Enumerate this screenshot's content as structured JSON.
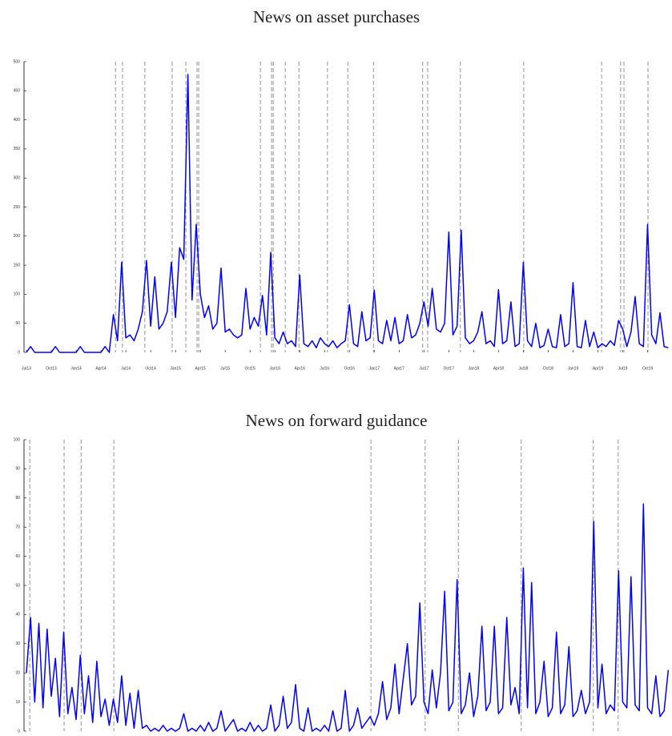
{
  "chart_data": [
    {
      "type": "line",
      "title": "News on asset purchases",
      "categories": [
        "Jul13",
        null,
        null,
        null,
        null,
        null,
        "Oct13",
        null,
        null,
        null,
        null,
        null,
        "Jan14",
        null,
        null,
        null,
        null,
        null,
        "Apr14",
        null,
        null,
        null,
        null,
        null,
        "Jul14",
        null,
        null,
        null,
        null,
        null,
        "Oct14",
        null,
        null,
        null,
        null,
        null,
        "Jan15",
        null,
        null,
        null,
        null,
        null,
        "Apr15",
        null,
        null,
        null,
        null,
        null,
        "Jul15",
        null,
        null,
        null,
        null,
        null,
        "Oct15",
        null,
        null,
        null,
        null,
        null,
        "Jan16",
        null,
        null,
        null,
        null,
        null,
        "Apr16",
        null,
        null,
        null,
        null,
        null,
        "Jul16",
        null,
        null,
        null,
        null,
        null,
        "Oct16",
        null,
        null,
        null,
        null,
        null,
        "Jan17",
        null,
        null,
        null,
        null,
        null,
        "Apr17",
        null,
        null,
        null,
        null,
        null,
        "Jul17",
        null,
        null,
        null,
        null,
        null,
        "Oct17",
        null,
        null,
        null,
        null,
        null,
        "Jan18",
        null,
        null,
        null,
        null,
        null,
        "Apr18",
        null,
        null,
        null,
        null,
        null,
        "Jul18",
        null,
        null,
        null,
        null,
        null,
        "Oct18",
        null,
        null,
        null,
        null,
        null,
        "Jan19",
        null,
        null,
        null,
        null,
        null,
        "Apr19",
        null,
        null,
        null,
        null,
        null,
        "Jul19",
        null,
        null,
        null,
        null,
        null,
        "Oct19",
        null,
        null,
        null,
        null,
        null
      ],
      "series": [
        {
          "color": "#0000ff",
          "values": [
            0,
            10,
            0,
            0,
            0,
            0,
            0,
            10,
            0,
            0,
            0,
            0,
            0,
            10,
            0,
            0,
            0,
            0,
            0,
            10,
            0,
            65,
            20,
            155,
            25,
            30,
            20,
            40,
            70,
            158,
            45,
            130,
            40,
            50,
            70,
            155,
            60,
            180,
            160,
            478,
            90,
            220,
            100,
            60,
            80,
            40,
            50,
            145,
            35,
            40,
            30,
            25,
            30,
            110,
            40,
            60,
            45,
            98,
            30,
            172,
            25,
            15,
            35,
            15,
            20,
            10,
            133,
            15,
            10,
            20,
            8,
            25,
            15,
            10,
            20,
            8,
            15,
            20,
            82,
            15,
            10,
            70,
            20,
            25,
            107,
            20,
            15,
            55,
            20,
            60,
            15,
            20,
            65,
            25,
            30,
            50,
            87,
            45,
            110,
            40,
            35,
            50,
            207,
            30,
            45,
            210,
            25,
            15,
            20,
            35,
            70,
            15,
            20,
            10,
            108,
            15,
            20,
            87,
            10,
            15,
            155,
            20,
            10,
            50,
            8,
            12,
            40,
            10,
            8,
            65,
            10,
            15,
            120,
            10,
            8,
            55,
            10,
            35,
            8,
            15,
            10,
            20,
            12,
            55,
            40,
            10,
            35,
            96,
            15,
            10,
            220,
            30,
            15,
            68,
            10,
            8
          ]
        }
      ],
      "events": [
        21.5,
        23.2,
        28.6,
        35.2,
        38.5,
        41.2,
        41.6,
        56.5,
        59.2,
        59.6,
        62.5,
        65.8,
        72.7,
        77.6,
        83.8,
        95.7,
        96.9,
        104.8,
        120.1,
        138.9,
        143.5,
        144.3,
        150.1
      ],
      "ylim": [
        0,
        500
      ],
      "yticks": [
        0,
        50,
        100,
        150,
        200,
        250,
        300,
        350,
        400,
        450,
        500
      ]
    },
    {
      "type": "line",
      "title": "News on forward guidance",
      "series": [
        {
          "color": "#0000ff",
          "values": [
            20,
            39,
            10,
            37,
            8,
            35,
            12,
            25,
            5,
            34,
            6,
            15,
            4,
            26,
            6,
            19,
            3,
            24,
            5,
            11,
            2,
            11,
            3,
            19,
            2,
            13,
            1,
            14,
            1,
            2,
            0,
            1,
            0,
            2,
            0,
            1,
            0,
            1,
            6,
            0,
            1,
            0,
            2,
            0,
            3,
            0,
            1,
            7,
            0,
            2,
            4,
            0,
            1,
            0,
            3,
            0,
            2,
            0,
            1,
            9,
            0,
            2,
            12,
            1,
            3,
            16,
            1,
            0,
            8,
            0,
            1,
            0,
            2,
            0,
            7,
            0,
            1,
            14,
            0,
            2,
            8,
            1,
            3,
            5,
            2,
            6,
            17,
            4,
            8,
            23,
            6,
            18,
            30,
            9,
            12,
            44,
            10,
            6,
            21,
            8,
            20,
            48,
            7,
            10,
            52,
            6,
            9,
            20,
            5,
            12,
            36,
            7,
            10,
            36,
            6,
            8,
            39,
            9,
            15,
            6,
            56,
            8,
            51,
            6,
            10,
            24,
            5,
            8,
            34,
            6,
            9,
            29,
            5,
            7,
            14,
            6,
            10,
            72,
            8,
            23,
            6,
            9,
            7,
            55,
            10,
            8,
            53,
            9,
            7,
            78,
            8,
            6,
            19,
            5,
            7,
            21
          ]
        }
      ],
      "events": [
        0.8,
        9.1,
        13.2,
        21.1,
        83.2,
        96.3,
        104.3,
        119.5,
        136.9,
        142.9
      ],
      "ylim": [
        0,
        100
      ],
      "yticks": [
        0,
        10,
        20,
        30,
        40,
        50,
        60,
        70,
        80,
        90,
        100
      ]
    }
  ]
}
